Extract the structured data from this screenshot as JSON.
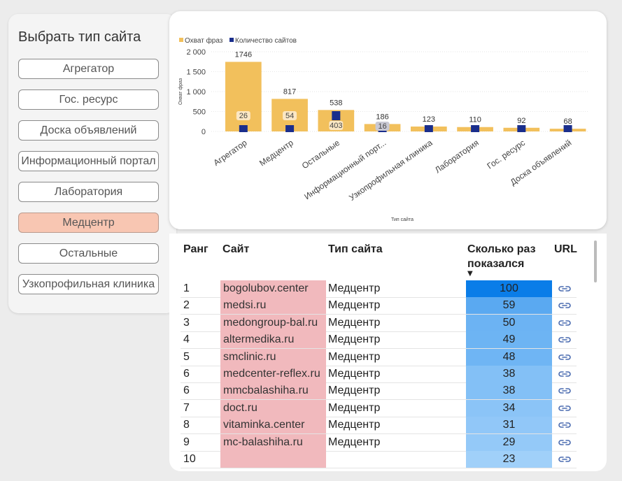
{
  "slicer": {
    "title": "Выбрать тип сайта",
    "items": [
      {
        "label": "Агрегатор",
        "selected": false
      },
      {
        "label": "Гос. ресурс",
        "selected": false
      },
      {
        "label": "Доска объявлений",
        "selected": false
      },
      {
        "label": "Информационный портал",
        "selected": false
      },
      {
        "label": "Лаборатория",
        "selected": false
      },
      {
        "label": "Медцентр",
        "selected": true
      },
      {
        "label": "Остальные",
        "selected": false
      },
      {
        "label": "Узкопрофильная клиника",
        "selected": false
      }
    ]
  },
  "chart_data": {
    "type": "bar",
    "categories": [
      "Агрегатор",
      "Медцентр",
      "Остальные",
      "Информационный порт...",
      "Узкопрофильная клиника",
      "Лаборатория",
      "Гос. ресурс",
      "Доска объявлений"
    ],
    "series": [
      {
        "name": "Охват фраз",
        "color": "#f2c05c",
        "values": [
          1746,
          817,
          538,
          186,
          123,
          110,
          92,
          68
        ]
      },
      {
        "name": "Количество сайтов",
        "color": "#1a2e8c",
        "values": [
          26,
          54,
          403,
          16,
          null,
          null,
          null,
          null
        ]
      }
    ],
    "xlabel": "Тип сайта",
    "ylabel": "Охват фраз",
    "ylim": [
      0,
      2000
    ],
    "yticks": [
      "0",
      "500",
      "1 000",
      "1 500",
      "2 000"
    ],
    "ytick_values": [
      0,
      500,
      1000,
      1500,
      2000
    ],
    "legend": "top-left",
    "grid": true
  },
  "table": {
    "headers": {
      "rank": "Ранг",
      "site": "Сайт",
      "type": "Тип сайта",
      "count_line1": "Сколько раз",
      "count_line2": "показался",
      "url": "URL"
    },
    "sort_arrow": "▼",
    "max_count": 100,
    "rows": [
      {
        "rank": "1",
        "site": "bogolubov.center",
        "type": "Медцентр",
        "count": 100
      },
      {
        "rank": "2",
        "site": "medsi.ru",
        "type": "Медцентр",
        "count": 59
      },
      {
        "rank": "3",
        "site": "medongroup-bal.ru",
        "type": "Медцентр",
        "count": 50
      },
      {
        "rank": "4",
        "site": "altermedika.ru",
        "type": "Медцентр",
        "count": 49
      },
      {
        "rank": "5",
        "site": "smclinic.ru",
        "type": "Медцентр",
        "count": 48
      },
      {
        "rank": "6",
        "site": "medcenter-reflex.ru",
        "type": "Медцентр",
        "count": 38
      },
      {
        "rank": "6",
        "site": "mmcbalashiha.ru",
        "type": "Медцентр",
        "count": 38
      },
      {
        "rank": "7",
        "site": "doct.ru",
        "type": "Медцентр",
        "count": 34
      },
      {
        "rank": "8",
        "site": "vitaminka.center",
        "type": "Медцентр",
        "count": 31
      },
      {
        "rank": "9",
        "site": "mc-balashiha.ru",
        "type": "Медцентр",
        "count": 29
      },
      {
        "rank": "10",
        "site": "",
        "type": "",
        "count": 23
      }
    ]
  }
}
